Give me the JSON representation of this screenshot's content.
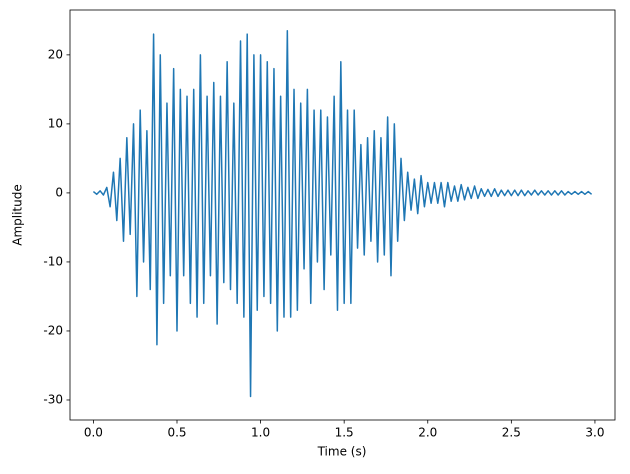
{
  "chart_data": {
    "type": "line",
    "x_label": "Time (s)",
    "y_label": "Amplitude",
    "color": "#1f77b4",
    "xlim": [
      -0.14,
      3.12
    ],
    "ylim": [
      -32.9,
      26.5
    ],
    "xticks": [
      {
        "value": 0,
        "label": "0.0"
      },
      0.5,
      {
        "value": 1,
        "label": "1.0"
      },
      1.5,
      {
        "value": 2,
        "label": "2.0"
      },
      2.5,
      {
        "value": 3,
        "label": "3.0"
      }
    ],
    "yticks": [
      -30,
      -20,
      -10,
      0,
      10,
      20
    ],
    "x": [
      0,
      0.02,
      0.04,
      0.06,
      0.08,
      0.1,
      0.12,
      0.14,
      0.16,
      0.18,
      0.2,
      0.22,
      0.24,
      0.26,
      0.28,
      0.3,
      0.32,
      0.34,
      0.36,
      0.38,
      0.4,
      0.42,
      0.44,
      0.46,
      0.48,
      0.5,
      0.52,
      0.54,
      0.56,
      0.58,
      0.6,
      0.62,
      0.64,
      0.66,
      0.68,
      0.7,
      0.72,
      0.74,
      0.76,
      0.78,
      0.8,
      0.82,
      0.84,
      0.86,
      0.88,
      0.9,
      0.92,
      0.94,
      0.96,
      0.98,
      1,
      1.02,
      1.04,
      1.06,
      1.08,
      1.1,
      1.12,
      1.14,
      1.16,
      1.18,
      1.2,
      1.22,
      1.24,
      1.26,
      1.28,
      1.3,
      1.32,
      1.34,
      1.36,
      1.38,
      1.4,
      1.42,
      1.44,
      1.46,
      1.48,
      1.5,
      1.52,
      1.54,
      1.56,
      1.58,
      1.6,
      1.62,
      1.64,
      1.66,
      1.68,
      1.7,
      1.72,
      1.74,
      1.76,
      1.78,
      1.8,
      1.82,
      1.84,
      1.86,
      1.88,
      1.9,
      1.92,
      1.94,
      1.96,
      1.98,
      2,
      2.02,
      2.04,
      2.06,
      2.08,
      2.1,
      2.12,
      2.14,
      2.16,
      2.18,
      2.2,
      2.22,
      2.24,
      2.26,
      2.28,
      2.3,
      2.32,
      2.34,
      2.36,
      2.38,
      2.4,
      2.42,
      2.44,
      2.46,
      2.48,
      2.5,
      2.52,
      2.54,
      2.56,
      2.58,
      2.6,
      2.62,
      2.64,
      2.66,
      2.68,
      2.7,
      2.72,
      2.74,
      2.76,
      2.78,
      2.8,
      2.82,
      2.84,
      2.86,
      2.88,
      2.9,
      2.92,
      2.94,
      2.96,
      2.98
    ],
    "values": [
      0.2,
      -0.2,
      0.3,
      -0.3,
      0.8,
      -2,
      3,
      -4,
      5,
      -7,
      8,
      -6,
      10,
      -15,
      12,
      -10,
      9,
      -14,
      23,
      -22,
      20,
      -16,
      13,
      -12,
      18,
      -20,
      15,
      -12,
      14,
      -16,
      15,
      -18,
      20,
      -16,
      14,
      -12,
      16,
      -19,
      14,
      -13,
      19,
      -14,
      13,
      -16,
      22,
      -18,
      23,
      -29.5,
      20,
      -17,
      20,
      -15,
      19,
      -16,
      18,
      -20,
      14,
      -18,
      23.5,
      -18,
      15,
      -17,
      13,
      -11,
      15,
      -16,
      12,
      -10,
      12,
      -14,
      11,
      -9,
      14,
      -17,
      19,
      -16,
      12,
      -16,
      12,
      -8,
      7,
      -9,
      8,
      -7,
      9,
      -10,
      8,
      -9,
      11,
      -12,
      10,
      -7,
      5,
      -4,
      3,
      -2.5,
      2,
      -3,
      2.5,
      -2,
      1.5,
      -1.5,
      1.5,
      -1.5,
      1.5,
      -2,
      1.5,
      -1.2,
      1,
      -1.2,
      1.2,
      -1,
      0.8,
      -0.8,
      1,
      -0.8,
      0.6,
      -0.5,
      0.5,
      -0.5,
      0.6,
      -0.5,
      0.4,
      -0.4,
      0.4,
      -0.4,
      0.4,
      -0.4,
      0.4,
      -0.4,
      0.3,
      -0.3,
      0.4,
      -0.3,
      0.3,
      -0.3,
      0.3,
      -0.3,
      0.3,
      -0.3,
      0.3,
      -0.3,
      0.2,
      -0.2,
      0.2,
      -0.2,
      0.2,
      -0.2,
      0.2,
      -0.2
    ]
  }
}
